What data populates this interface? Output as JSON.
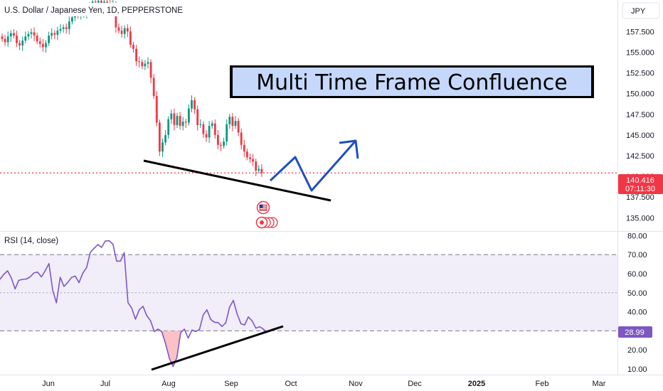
{
  "header": {
    "symbol_title": "U.S. Dollar / Japanese Yen, 1D, PEPPERSTONE"
  },
  "currency_button": "JPY",
  "banner": {
    "text": "Multi Time Frame Confluence"
  },
  "price_tag": {
    "price": "140.416",
    "countdown": "07:11:30",
    "color": "#f23645"
  },
  "rsi_tag": {
    "value": "28.99",
    "color": "#7e57c2"
  },
  "rsi_title": "RSI (14, close)",
  "colors": {
    "up": "#089981",
    "down": "#f23645",
    "rsi_line": "#7e57c2",
    "rsi_band": "#f1edf9",
    "arrow": "#1e4fc0"
  },
  "chart_data": [
    {
      "type": "candlestick",
      "title": "U.S. Dollar / Japanese Yen, 1D, PEPPERSTONE",
      "ylim": [
        133.4,
        161.3
      ],
      "y_ticks": [
        "157.500",
        "155.000",
        "152.500",
        "150.000",
        "147.500",
        "145.000",
        "142.500",
        "140.000",
        "137.500",
        "135.000"
      ],
      "x_ticks": [
        "Jun",
        "Jul",
        "Aug",
        "Sep",
        "Oct",
        "Nov",
        "Dec",
        "2025",
        "Feb",
        "Mar"
      ],
      "last_price": 140.416,
      "series": [
        {
          "name": "USDJPY",
          "close": [
            156.6,
            156.2,
            156.9,
            157.3,
            157.0,
            156.1,
            155.8,
            156.4,
            156.9,
            157.2,
            157.4,
            157.0,
            156.3,
            156.0,
            155.6,
            156.1,
            157.0,
            157.3,
            157.1,
            157.6,
            157.8,
            158.0,
            157.8,
            158.7,
            159.2,
            159.7,
            159.6,
            159.8,
            159.5,
            160.2,
            160.7,
            161.1,
            161.0,
            161.2,
            160.8,
            161.1,
            160.9,
            160.6,
            160.8,
            158.0,
            157.6,
            157.2,
            157.9,
            157.5,
            155.9,
            155.4,
            153.9,
            153.8,
            153.3,
            153.6,
            153.8,
            151.9,
            149.7,
            146.5,
            143.0,
            144.1,
            145.0,
            146.9,
            147.6,
            146.2,
            147.3,
            146.1,
            146.6,
            146.5,
            148.2,
            149.2,
            148.1,
            146.2,
            146.3,
            145.1,
            144.7,
            146.1,
            146.4,
            145.0,
            143.8,
            143.7,
            144.2,
            146.3,
            147.2,
            146.1,
            146.7,
            145.3,
            143.8,
            143.0,
            142.3,
            142.1,
            141.8,
            140.7,
            140.9,
            140.4
          ]
        }
      ]
    },
    {
      "type": "line",
      "title": "RSI (14, close)",
      "ylim": [
        7,
        82
      ],
      "y_ticks": [
        "80.00",
        "70.00",
        "60.00",
        "50.00",
        "40.00",
        "30.00",
        "20.00",
        "10.00"
      ],
      "levels": [
        70,
        50,
        30
      ],
      "last_value": 28.99,
      "series": [
        {
          "name": "RSI",
          "values": [
            57.0,
            59.6,
            61.5,
            57.8,
            52.0,
            56.5,
            57.0,
            57.2,
            58.3,
            60.4,
            60.8,
            58.3,
            61.5,
            65.3,
            51.3,
            44.7,
            58.1,
            53.3,
            55.4,
            58.0,
            58.7,
            55.3,
            60.3,
            63.2,
            71.2,
            73.3,
            75.3,
            73.8,
            77.2,
            77.3,
            75.5,
            66.6,
            66.6,
            71.0,
            44.8,
            41.9,
            36.1,
            41.0,
            42.9,
            38.0,
            35.3,
            29.6,
            30.9,
            29.5,
            23.2,
            15.5,
            11.3,
            15.9,
            28.9,
            30.9,
            26.2,
            30.4,
            29.6,
            30.7,
            38.4,
            41.0,
            36.0,
            34.5,
            34.3,
            32.3,
            34.2,
            42.4,
            46.0,
            38.9,
            33.8,
            33.1,
            37.3,
            35.2,
            31.4,
            32.2,
            30.9,
            29.0
          ]
        }
      ]
    }
  ]
}
